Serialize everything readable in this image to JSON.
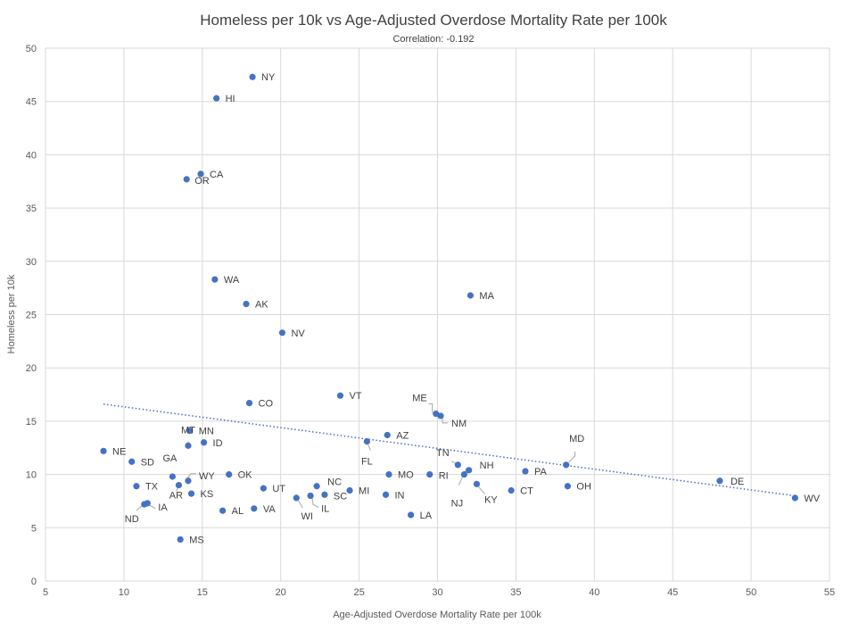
{
  "chart_data": {
    "type": "scatter",
    "title": "Homeless per 10k vs Age-Adjusted Overdose Mortality Rate per 100k",
    "subtitle": "Correlation: -0.192",
    "xlabel": "Age-Adjusted  Overdose Mortality Rate per  100k",
    "ylabel": "Homeless per 10k",
    "xlim": [
      5,
      55
    ],
    "ylim": [
      0,
      50
    ],
    "x_ticks": [
      5,
      10,
      15,
      20,
      25,
      30,
      35,
      40,
      45,
      50,
      55
    ],
    "y_ticks": [
      0,
      5,
      10,
      15,
      20,
      25,
      30,
      35,
      40,
      45,
      50
    ],
    "grid": true,
    "marker_color": "#4472c4",
    "trendline": {
      "type": "linear",
      "style": "dotted",
      "color": "#4472c4",
      "x": [
        8.7,
        52.8
      ],
      "y": [
        16.6,
        8.0
      ]
    },
    "points": [
      {
        "label": "NY",
        "x": 18.2,
        "y": 47.3
      },
      {
        "label": "HI",
        "x": 15.9,
        "y": 45.3
      },
      {
        "label": "CA",
        "x": 14.9,
        "y": 38.2
      },
      {
        "label": "OR",
        "x": 14.0,
        "y": 37.7
      },
      {
        "label": "WA",
        "x": 15.8,
        "y": 28.3
      },
      {
        "label": "AK",
        "x": 17.8,
        "y": 26.0
      },
      {
        "label": "MA",
        "x": 32.1,
        "y": 26.8
      },
      {
        "label": "NV",
        "x": 20.1,
        "y": 23.3
      },
      {
        "label": "VT",
        "x": 23.8,
        "y": 17.4
      },
      {
        "label": "CO",
        "x": 18.0,
        "y": 16.7
      },
      {
        "label": "ME",
        "x": 29.9,
        "y": 15.7
      },
      {
        "label": "NM",
        "x": 30.2,
        "y": 15.5
      },
      {
        "label": "AZ",
        "x": 26.8,
        "y": 13.7
      },
      {
        "label": "FL",
        "x": 25.5,
        "y": 13.1
      },
      {
        "label": "MN",
        "x": 14.2,
        "y": 14.1
      },
      {
        "label": "MT",
        "x": 14.1,
        "y": 12.7
      },
      {
        "label": "ID",
        "x": 15.1,
        "y": 13.0
      },
      {
        "label": "NE",
        "x": 8.7,
        "y": 12.2
      },
      {
        "label": "SD",
        "x": 10.5,
        "y": 11.2
      },
      {
        "label": "GA",
        "x": 13.1,
        "y": 9.8
      },
      {
        "label": "WY",
        "x": 14.1,
        "y": 9.4
      },
      {
        "label": "OK",
        "x": 16.7,
        "y": 10.0
      },
      {
        "label": "TX",
        "x": 10.8,
        "y": 8.9
      },
      {
        "label": "AR",
        "x": 13.5,
        "y": 9.0
      },
      {
        "label": "KS",
        "x": 14.3,
        "y": 8.2
      },
      {
        "label": "IA",
        "x": 11.5,
        "y": 7.3
      },
      {
        "label": "ND",
        "x": 11.3,
        "y": 7.2
      },
      {
        "label": "UT",
        "x": 18.9,
        "y": 8.7
      },
      {
        "label": "AL",
        "x": 16.3,
        "y": 6.6
      },
      {
        "label": "VA",
        "x": 18.3,
        "y": 6.8
      },
      {
        "label": "MS",
        "x": 13.6,
        "y": 3.9
      },
      {
        "label": "NC",
        "x": 22.3,
        "y": 8.9
      },
      {
        "label": "SC",
        "x": 22.8,
        "y": 8.1
      },
      {
        "label": "IL",
        "x": 21.9,
        "y": 8.0
      },
      {
        "label": "WI",
        "x": 21.0,
        "y": 7.8
      },
      {
        "label": "MI",
        "x": 24.4,
        "y": 8.5
      },
      {
        "label": "IN",
        "x": 26.7,
        "y": 8.1
      },
      {
        "label": "MO",
        "x": 26.9,
        "y": 10.0
      },
      {
        "label": "LA",
        "x": 28.3,
        "y": 6.2
      },
      {
        "label": "RI",
        "x": 29.5,
        "y": 10.0
      },
      {
        "label": "TN",
        "x": 31.3,
        "y": 10.9
      },
      {
        "label": "NH",
        "x": 32.0,
        "y": 10.4
      },
      {
        "label": "NJ",
        "x": 31.7,
        "y": 10.0
      },
      {
        "label": "KY",
        "x": 32.5,
        "y": 9.1
      },
      {
        "label": "PA",
        "x": 35.6,
        "y": 10.3
      },
      {
        "label": "CT",
        "x": 34.7,
        "y": 8.5
      },
      {
        "label": "MD",
        "x": 38.2,
        "y": 10.9
      },
      {
        "label": "OH",
        "x": 38.3,
        "y": 8.9
      },
      {
        "label": "DE",
        "x": 48.0,
        "y": 9.4
      },
      {
        "label": "WV",
        "x": 52.8,
        "y": 7.8
      }
    ]
  }
}
